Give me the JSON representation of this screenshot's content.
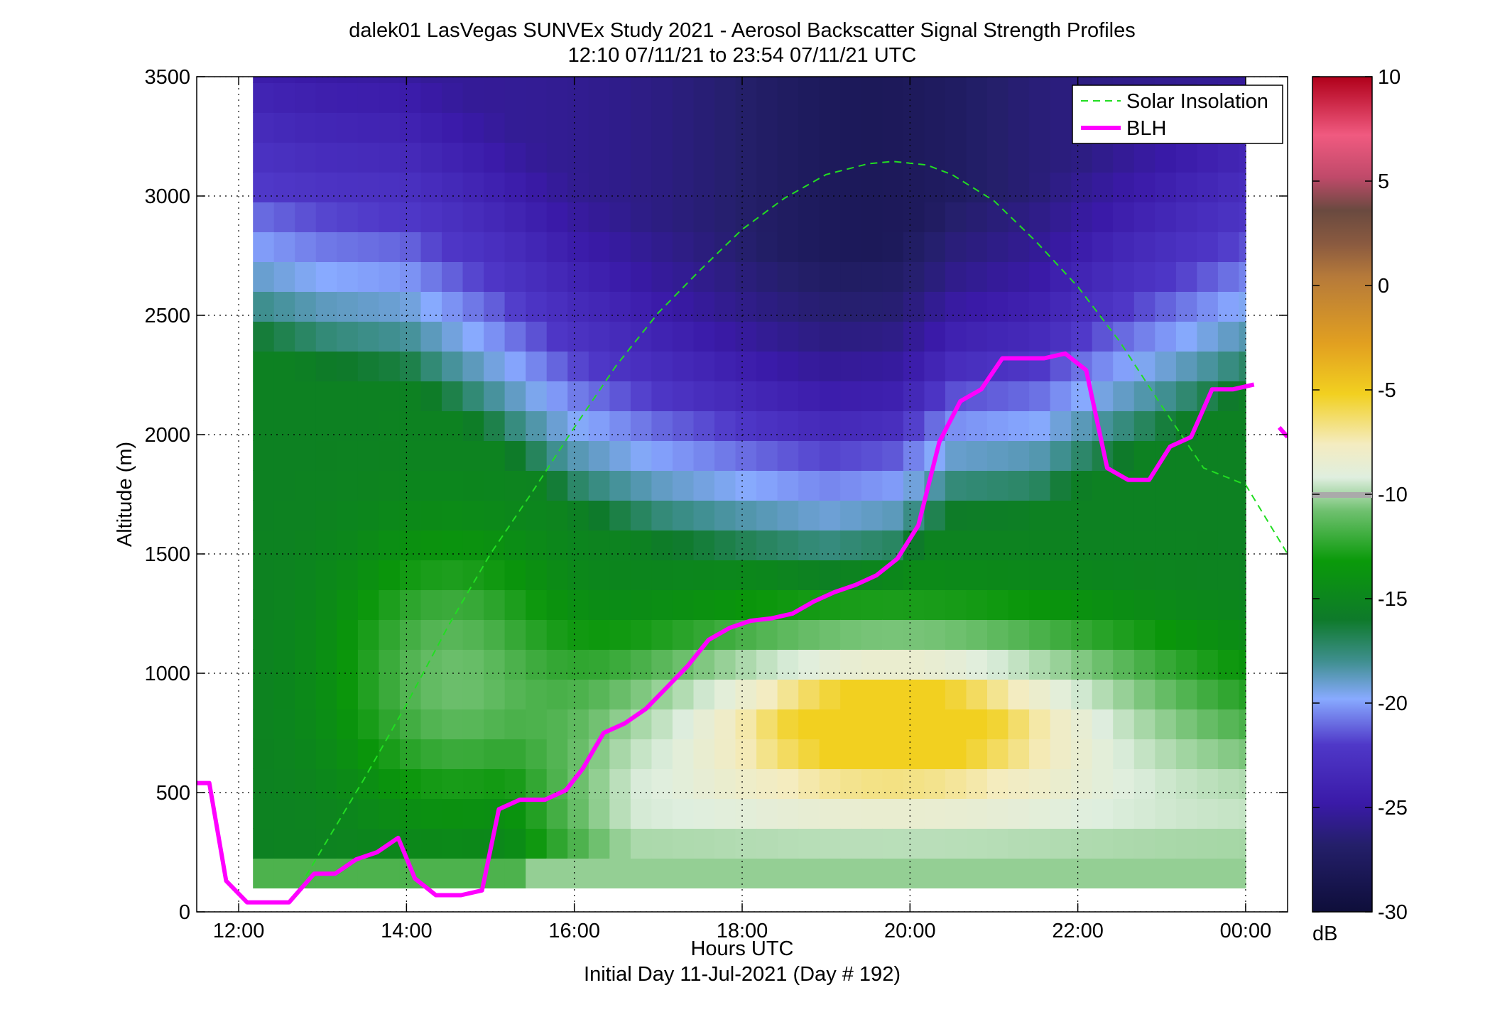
{
  "chart_data": {
    "type": "heatmap",
    "title": "dalek01 LasVegas SUNVEx Study 2021 - Aerosol Backscatter Signal Strength Profiles",
    "subtitle": "12:10 07/11/21 to 23:54 07/11/21  UTC",
    "xlabel": "Hours UTC",
    "xlabel2": "Initial Day 11-Jul-2021 (Day # 192)",
    "ylabel": "Altitude (m)",
    "xlim_hours": [
      11.5,
      24.5
    ],
    "ylim": [
      0,
      3500
    ],
    "x_ticks": [
      {
        "value": 12,
        "label": "12:00"
      },
      {
        "value": 14,
        "label": "14:00"
      },
      {
        "value": 16,
        "label": "16:00"
      },
      {
        "value": 18,
        "label": "18:00"
      },
      {
        "value": 20,
        "label": "20:00"
      },
      {
        "value": 22,
        "label": "22:00"
      },
      {
        "value": 24,
        "label": "00:00"
      }
    ],
    "y_ticks": [
      0,
      500,
      1000,
      1500,
      2000,
      2500,
      3000,
      3500
    ],
    "grid": true,
    "legend_position": "top-right",
    "colorbar": {
      "range": [
        -30,
        10
      ],
      "ticks": [
        10,
        5,
        0,
        -5,
        -10,
        -15,
        -20,
        -25,
        -30
      ],
      "unit": "dB"
    },
    "heatmap_extent": {
      "x": [
        12.17,
        24.0
      ],
      "y": [
        100,
        3500
      ]
    },
    "series": [
      {
        "name": "Solar Insolation",
        "style": "dashed",
        "color": "#22dd22",
        "points": [
          [
            12.8,
            150
          ],
          [
            13.5,
            560
          ],
          [
            14.0,
            870
          ],
          [
            14.5,
            1200
          ],
          [
            15.0,
            1500
          ],
          [
            15.5,
            1760
          ],
          [
            16.0,
            2030
          ],
          [
            16.5,
            2290
          ],
          [
            17.0,
            2510
          ],
          [
            17.5,
            2690
          ],
          [
            18.0,
            2860
          ],
          [
            18.5,
            2990
          ],
          [
            19.0,
            3090
          ],
          [
            19.5,
            3135
          ],
          [
            19.8,
            3145
          ],
          [
            20.2,
            3130
          ],
          [
            20.5,
            3090
          ],
          [
            21.0,
            2980
          ],
          [
            21.5,
            2810
          ],
          [
            22.0,
            2620
          ],
          [
            22.5,
            2390
          ],
          [
            23.0,
            2120
          ],
          [
            23.5,
            1860
          ],
          [
            24.0,
            1790
          ],
          [
            24.5,
            1500
          ]
        ]
      },
      {
        "name": "BLH",
        "style": "solid",
        "color": "#ff00ff",
        "points": [
          [
            11.5,
            540
          ],
          [
            11.65,
            540
          ],
          [
            11.85,
            130
          ],
          [
            12.1,
            40
          ],
          [
            12.6,
            40
          ],
          [
            12.9,
            160
          ],
          [
            13.15,
            160
          ],
          [
            13.4,
            220
          ],
          [
            13.65,
            250
          ],
          [
            13.9,
            310
          ],
          [
            14.1,
            140
          ],
          [
            14.35,
            70
          ],
          [
            14.65,
            70
          ],
          [
            14.9,
            90
          ],
          [
            15.1,
            430
          ],
          [
            15.35,
            470
          ],
          [
            15.65,
            470
          ],
          [
            15.9,
            510
          ],
          [
            16.1,
            600
          ],
          [
            16.35,
            750
          ],
          [
            16.6,
            790
          ],
          [
            16.85,
            850
          ],
          [
            17.1,
            940
          ],
          [
            17.35,
            1030
          ],
          [
            17.6,
            1140
          ],
          [
            17.85,
            1190
          ],
          [
            18.1,
            1220
          ],
          [
            18.35,
            1230
          ],
          [
            18.6,
            1250
          ],
          [
            18.85,
            1300
          ],
          [
            19.1,
            1340
          ],
          [
            19.35,
            1370
          ],
          [
            19.6,
            1410
          ],
          [
            19.85,
            1480
          ],
          [
            20.1,
            1620
          ],
          [
            20.35,
            1970
          ],
          [
            20.6,
            2140
          ],
          [
            20.85,
            2190
          ],
          [
            21.1,
            2320
          ],
          [
            21.35,
            2320
          ],
          [
            21.6,
            2320
          ],
          [
            21.85,
            2340
          ],
          [
            22.1,
            2270
          ],
          [
            22.35,
            1860
          ],
          [
            22.6,
            1810
          ],
          [
            22.85,
            1810
          ],
          [
            23.1,
            1950
          ],
          [
            23.35,
            1990
          ],
          [
            23.6,
            2190
          ],
          [
            23.85,
            2190
          ],
          [
            24.1,
            2210
          ]
        ]
      },
      {
        "name": "BLH-segment-end",
        "style": "solid",
        "color": "#ff00ff",
        "points": [
          [
            24.4,
            2030
          ],
          [
            24.5,
            1990
          ]
        ]
      }
    ]
  }
}
